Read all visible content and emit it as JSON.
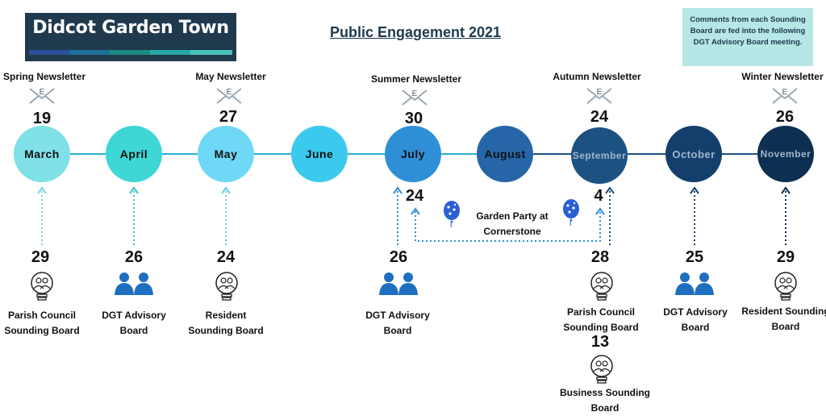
{
  "logo": {
    "text": "Didcot Garden Town",
    "bar_colors": [
      "#2a4f9a",
      "#1e6f9a",
      "#1b8a7f",
      "#29a8a8",
      "#49c2b8"
    ]
  },
  "title": "Public Engagement 2021",
  "note": {
    "text": "Comments from each Sounding Board are fed into the following DGT Advisory Board meeting."
  },
  "months": [
    {
      "name": "March",
      "color": "#7fe0e8",
      "text_color": "#111111"
    },
    {
      "name": "April",
      "color": "#3fd6d6",
      "text_color": "#111111"
    },
    {
      "name": "May",
      "color": "#6fd8f7",
      "text_color": "#111111"
    },
    {
      "name": "June",
      "color": "#3cc9ee",
      "text_color": "#111111"
    },
    {
      "name": "July",
      "color": "#2f8fd6",
      "text_color": "#111111"
    },
    {
      "name": "August",
      "color": "#2666a8",
      "text_color": "#111111"
    },
    {
      "name": "September",
      "color": "#1c5282",
      "text_color": "#9fb7cf"
    },
    {
      "name": "October",
      "color": "#143f6c",
      "text_color": "#9fb7cf"
    },
    {
      "name": "November",
      "color": "#0d2f52",
      "text_color": "#9fb7cf"
    }
  ],
  "newsletters": [
    {
      "label": "Spring Newsletter",
      "date": "19"
    },
    {
      "label": "May Newsletter",
      "date": "27"
    },
    {
      "label": "Summer Newsletter",
      "date": "30"
    },
    {
      "label": "Autumn Newsletter",
      "date": "24"
    },
    {
      "label": "Winter Newsletter",
      "date": "26"
    }
  ],
  "envelope_letter": "E",
  "events": [
    {
      "date": "29",
      "label": "Parish Council Sounding Board",
      "icon": "lightbulb-people-icon"
    },
    {
      "date": "26",
      "label": "DGT Advisory Board",
      "icon": "people-icon"
    },
    {
      "date": "24",
      "label": "Resident Sounding Board",
      "icon": "lightbulb-people-icon"
    },
    {
      "date": "26",
      "label": "DGT Advisory Board",
      "icon": "people-icon"
    },
    {
      "date": "28",
      "label": "Parish Council Sounding Board",
      "icon": "lightbulb-people-icon"
    },
    {
      "date": "13",
      "label": "Business Sounding Board",
      "icon": "lightbulb-people-icon"
    },
    {
      "date": "25",
      "label": "DGT Advisory Board",
      "icon": "people-icon"
    },
    {
      "date": "29",
      "label": "Resident Sounding Board",
      "icon": "lightbulb-people-icon"
    }
  ],
  "garden_party": {
    "label": "Garden Party at Cornerstone",
    "start_date": "24",
    "end_date": "4"
  }
}
